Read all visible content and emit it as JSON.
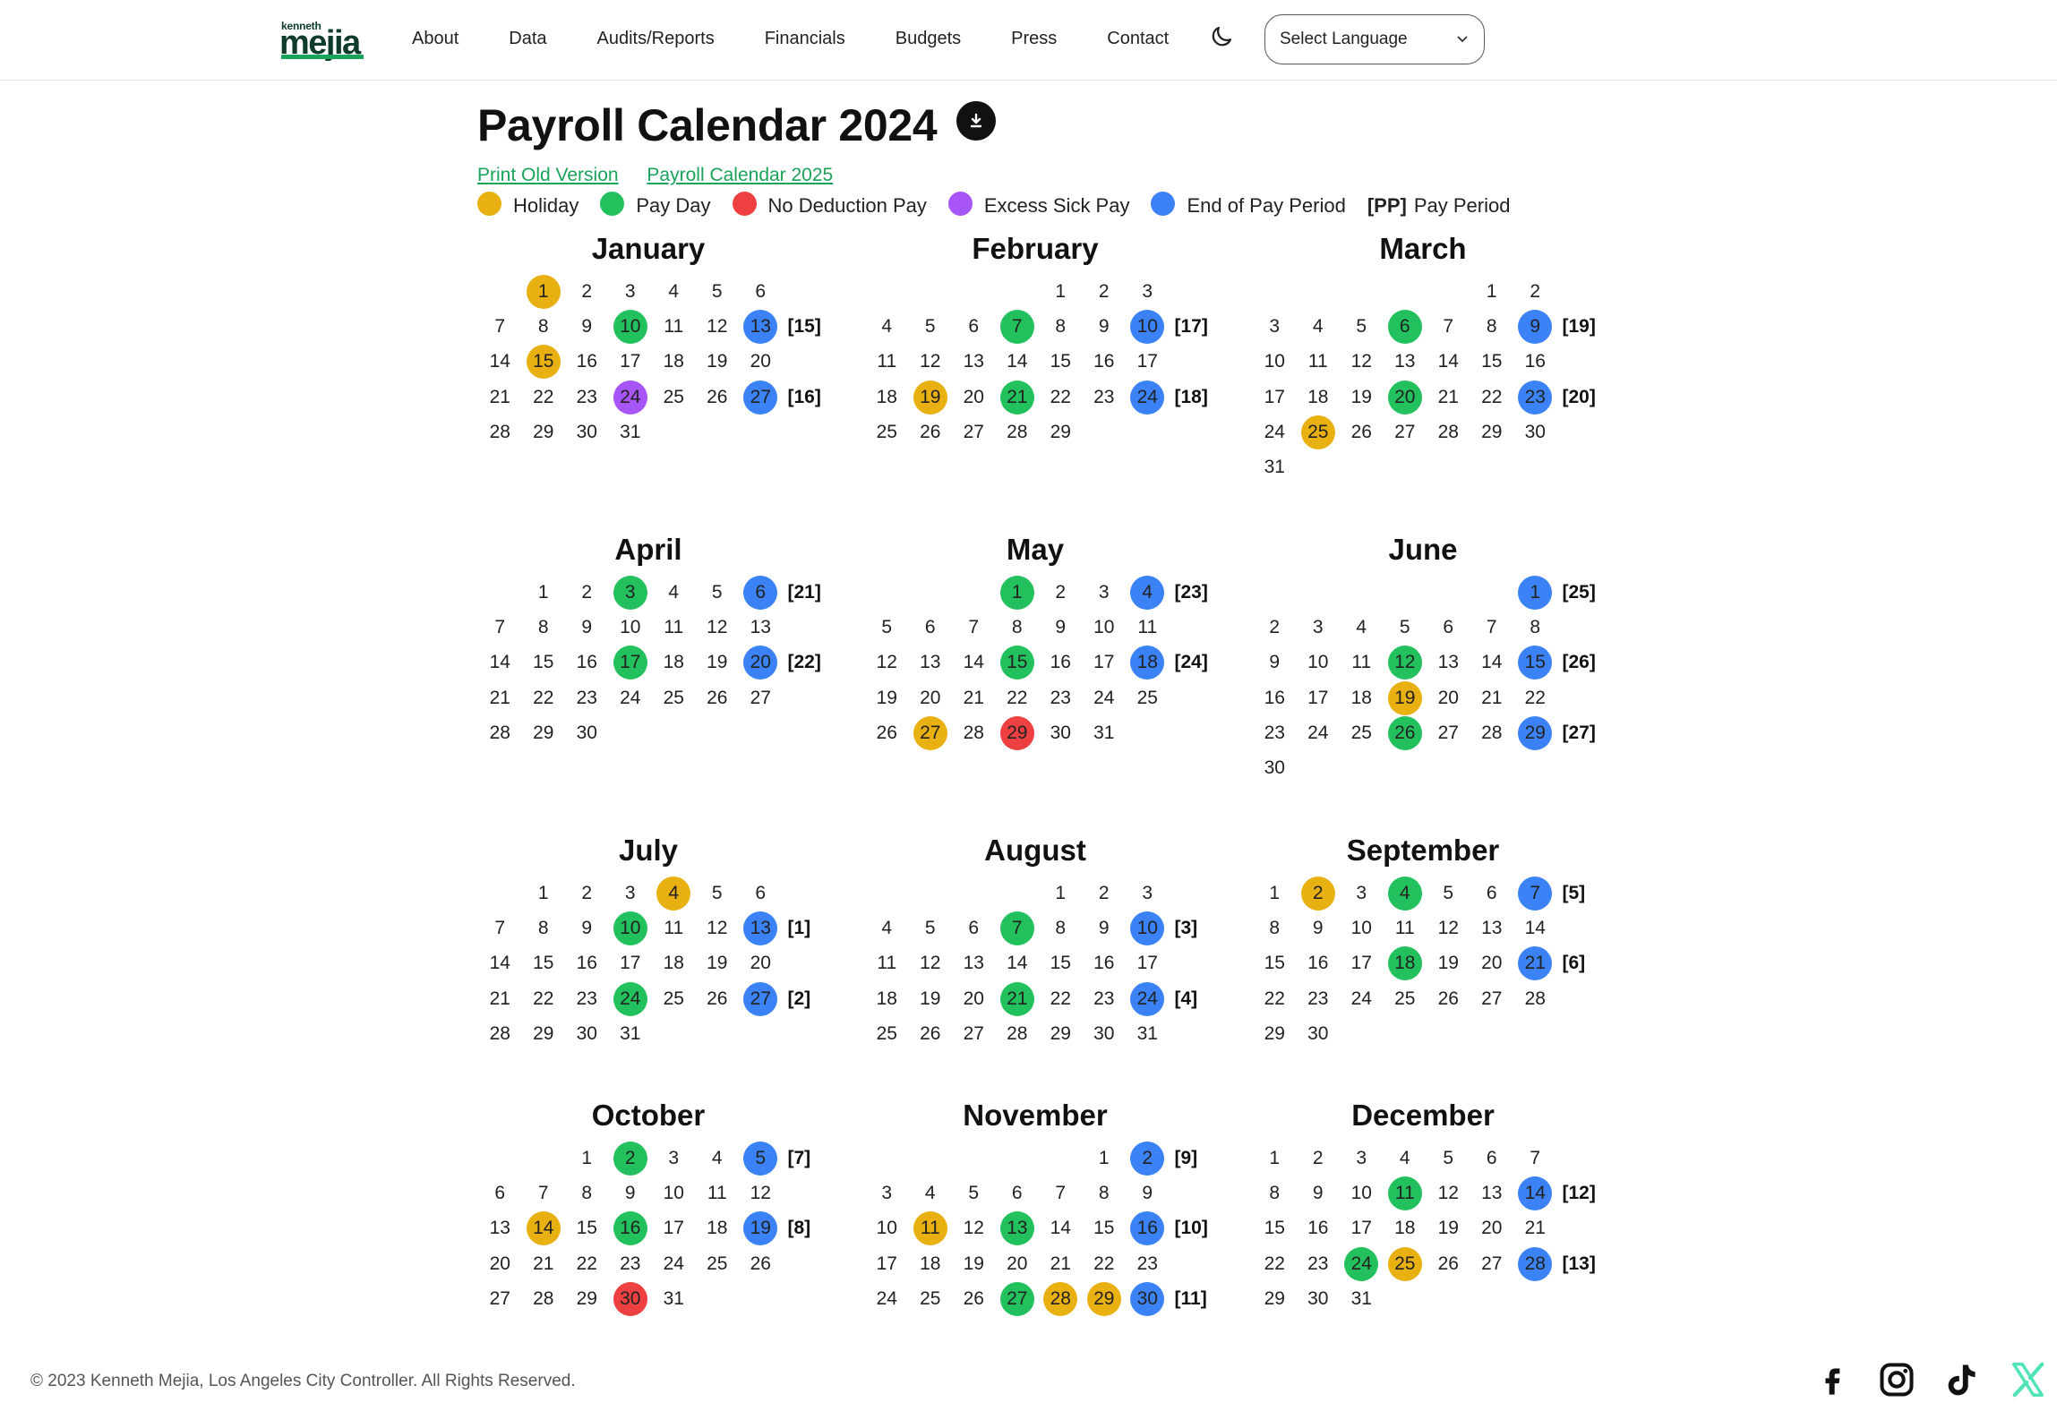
{
  "logo": {
    "small": "kenneth",
    "big": "mejia"
  },
  "nav": {
    "items": [
      "About",
      "Data",
      "Audits/Reports",
      "Financials",
      "Budgets",
      "Press",
      "Contact"
    ]
  },
  "language": {
    "label": "Select Language"
  },
  "title": "Payroll Calendar 2024",
  "links": {
    "old": "Print Old Version",
    "next": "Payroll Calendar 2025"
  },
  "legend": {
    "holiday": "Holiday",
    "payday": "Pay Day",
    "nodeduction": "No Deduction Pay",
    "excess": "Excess Sick Pay",
    "endpp": "End of Pay Period",
    "pp_code": "[PP]",
    "pp": "Pay Period"
  },
  "colors": {
    "holiday": "#e8b010",
    "payday": "#22c15e",
    "nodeduction": "#ee4040",
    "excess": "#a855f7",
    "endpp": "#3b82f6",
    "link": "#1aa35a"
  },
  "months": [
    {
      "name": "January",
      "start": 1,
      "days": 31,
      "marks": {
        "1": "holiday",
        "10": "payday",
        "13": "endpp",
        "15": "holiday",
        "24": "excess",
        "27": "endpp"
      },
      "pp": {
        "13": "[15]",
        "27": "[16]"
      }
    },
    {
      "name": "February",
      "start": 4,
      "days": 29,
      "marks": {
        "7": "payday",
        "10": "endpp",
        "19": "holiday",
        "21": "payday",
        "24": "endpp"
      },
      "pp": {
        "10": "[17]",
        "24": "[18]"
      }
    },
    {
      "name": "March",
      "start": 5,
      "days": 31,
      "marks": {
        "6": "payday",
        "9": "endpp",
        "20": "payday",
        "23": "endpp",
        "25": "holiday"
      },
      "pp": {
        "9": "[19]",
        "23": "[20]"
      }
    },
    {
      "name": "April",
      "start": 1,
      "days": 30,
      "marks": {
        "3": "payday",
        "6": "endpp",
        "17": "payday",
        "20": "endpp"
      },
      "pp": {
        "6": "[21]",
        "20": "[22]"
      }
    },
    {
      "name": "May",
      "start": 3,
      "days": 31,
      "marks": {
        "1": "payday",
        "4": "endpp",
        "15": "payday",
        "18": "endpp",
        "27": "holiday",
        "29": "nodeduction"
      },
      "pp": {
        "4": "[23]",
        "18": "[24]"
      }
    },
    {
      "name": "June",
      "start": 6,
      "days": 30,
      "marks": {
        "1": "endpp",
        "12": "payday",
        "15": "endpp",
        "19": "holiday",
        "26": "payday",
        "29": "endpp"
      },
      "pp": {
        "1": "[25]",
        "15": "[26]",
        "29": "[27]"
      }
    },
    {
      "name": "July",
      "start": 1,
      "days": 31,
      "marks": {
        "4": "holiday",
        "10": "payday",
        "13": "endpp",
        "24": "payday",
        "27": "endpp"
      },
      "pp": {
        "13": "[1]",
        "27": "[2]"
      }
    },
    {
      "name": "August",
      "start": 4,
      "days": 31,
      "marks": {
        "7": "payday",
        "10": "endpp",
        "21": "payday",
        "24": "endpp"
      },
      "pp": {
        "10": "[3]",
        "24": "[4]"
      }
    },
    {
      "name": "September",
      "start": 0,
      "days": 30,
      "marks": {
        "2": "holiday",
        "4": "payday",
        "7": "endpp",
        "18": "payday",
        "21": "endpp"
      },
      "pp": {
        "7": "[5]",
        "21": "[6]"
      }
    },
    {
      "name": "October",
      "start": 2,
      "days": 31,
      "marks": {
        "2": "payday",
        "5": "endpp",
        "14": "holiday",
        "16": "payday",
        "19": "endpp",
        "30": "nodeduction"
      },
      "pp": {
        "5": "[7]",
        "19": "[8]"
      }
    },
    {
      "name": "November",
      "start": 5,
      "days": 30,
      "marks": {
        "2": "endpp",
        "11": "holiday",
        "13": "payday",
        "16": "endpp",
        "27": "payday",
        "28": "holiday",
        "29": "holiday",
        "30": "endpp"
      },
      "pp": {
        "2": "[9]",
        "16": "[10]",
        "30": "[11]"
      }
    },
    {
      "name": "December",
      "start": 0,
      "days": 31,
      "marks": {
        "11": "payday",
        "14": "endpp",
        "24": "payday",
        "25": "holiday",
        "28": "endpp"
      },
      "pp": {
        "14": "[12]",
        "28": "[13]"
      }
    }
  ],
  "footer": {
    "copyright": "© 2023 Kenneth Mejia, Los Angeles City Controller. All Rights Reserved."
  },
  "social": [
    "facebook-icon",
    "instagram-icon",
    "tiktok-icon",
    "x-icon"
  ]
}
